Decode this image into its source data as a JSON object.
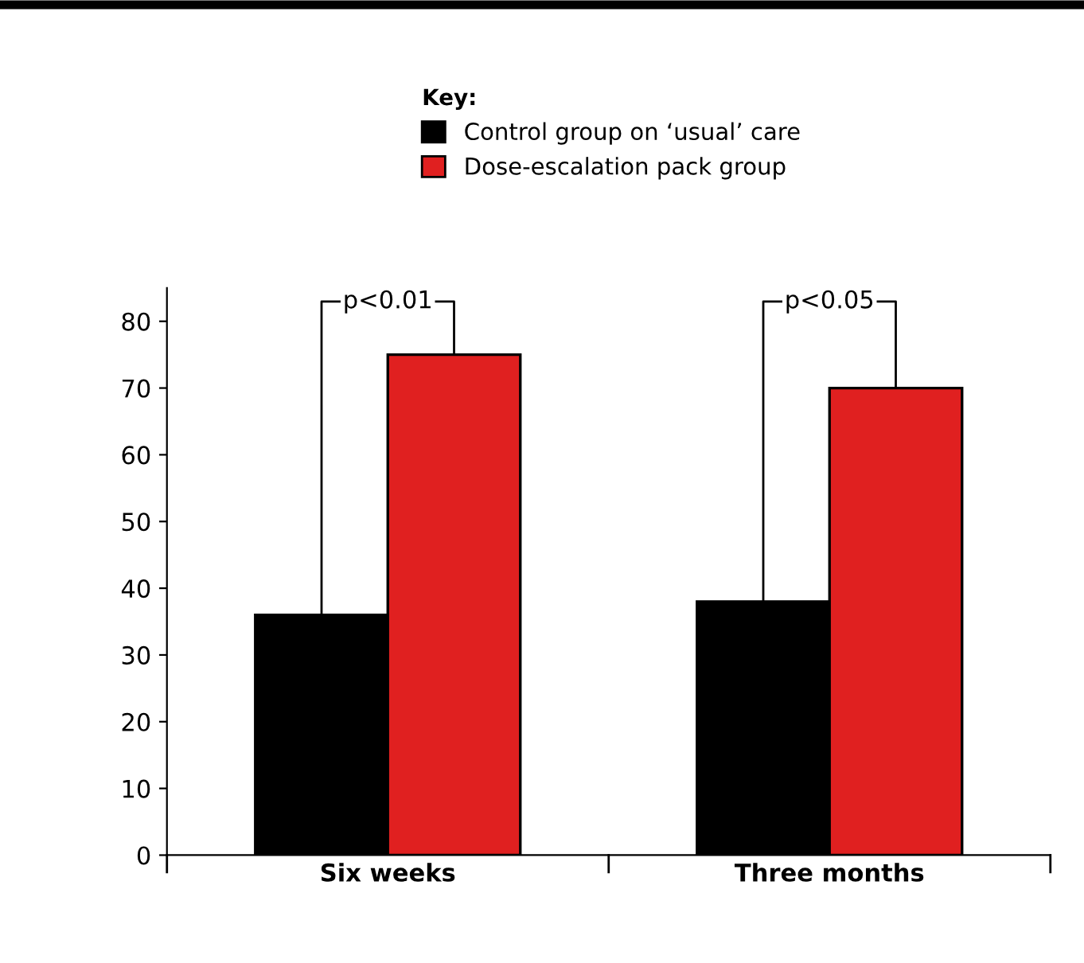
{
  "chart_data": {
    "type": "bar",
    "categories": [
      "Six weeks",
      "Three months"
    ],
    "series": [
      {
        "name": "Control group on ‘usual’ care",
        "color": "#000000",
        "values": [
          36,
          38
        ]
      },
      {
        "name": "Dose-escalation pack group",
        "color": "#e02020",
        "values": [
          75,
          70
        ]
      }
    ],
    "ylim": [
      0,
      85
    ],
    "yticks": [
      0,
      10,
      20,
      30,
      40,
      50,
      60,
      70,
      80
    ],
    "grid": false,
    "legend": "top",
    "legend_title": "Key:",
    "annotations": [
      "p<0.01",
      "p<0.05"
    ]
  }
}
